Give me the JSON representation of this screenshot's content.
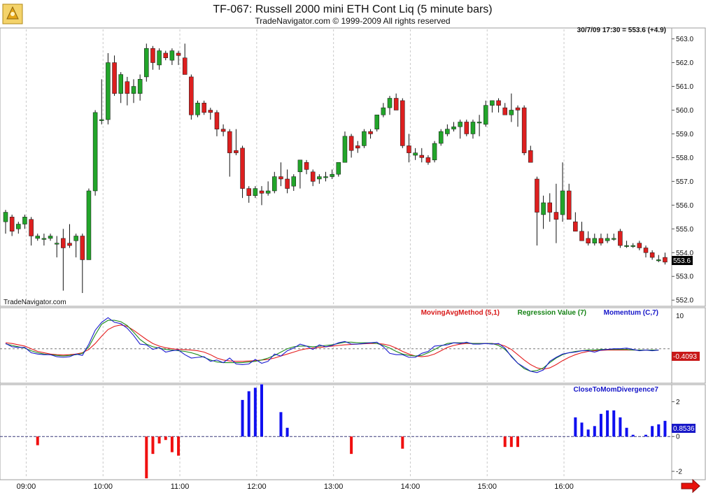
{
  "header": {
    "title": "TF-067:  Russell 2000 mini ETH Cont Liq  (5 minute bars)",
    "subtitle": "TradeNavigator.com © 1999-2009 All rights reserved"
  },
  "watermark": "TradeNavigator.com",
  "colors": {
    "up": "#22a52a",
    "down": "#dd1f1f",
    "ma": "#e41c1c",
    "reg": "#1c8a1c",
    "mom": "#1c1cd0",
    "bar_pos": "#1010f0",
    "bar_neg": "#f01010",
    "grid": "#c9c9c9",
    "accent_arrow": "#e8120c"
  },
  "chart_data": [
    {
      "type": "candlestick",
      "panel": "price",
      "readout": "30/7/09 17:30 = 553.6 (+4.9)",
      "last_value_label": "553.6",
      "ylim": [
        551.8,
        563.4
      ],
      "y_ticks": [
        "552.0",
        "553.0",
        "554.0",
        "555.0",
        "556.0",
        "557.0",
        "558.0",
        "559.0",
        "560.0",
        "561.0",
        "562.0",
        "563.0"
      ],
      "x_ticks": [
        "09:00",
        "10:00",
        "11:00",
        "12:00",
        "13:00",
        "14:00",
        "15:00",
        "16:00"
      ],
      "bars": [
        [
          555.3,
          555.8,
          554.8,
          555.7
        ],
        [
          555.5,
          555.6,
          554.7,
          554.9
        ],
        [
          555.0,
          555.3,
          554.8,
          555.2
        ],
        [
          555.2,
          555.6,
          555.0,
          555.5
        ],
        [
          555.4,
          555.5,
          554.3,
          554.7
        ],
        [
          554.6,
          554.8,
          554.5,
          554.7
        ],
        [
          554.6,
          554.8,
          554.3,
          554.6
        ],
        [
          554.6,
          554.8,
          554.5,
          554.7
        ],
        [
          554.4,
          554.7,
          553.8,
          554.4
        ],
        [
          554.6,
          555.0,
          552.4,
          554.2
        ],
        [
          554.4,
          555.2,
          554.2,
          554.3
        ],
        [
          554.5,
          554.8,
          553.8,
          554.7
        ],
        [
          554.7,
          554.8,
          552.3,
          553.7
        ],
        [
          553.7,
          556.7,
          553.7,
          556.6
        ],
        [
          556.6,
          560.0,
          556.4,
          559.9
        ],
        [
          559.6,
          561.3,
          559.4,
          559.6
        ],
        [
          559.6,
          562.4,
          559.4,
          562.0
        ],
        [
          562.0,
          562.3,
          560.6,
          560.7
        ],
        [
          560.7,
          561.6,
          560.3,
          561.5
        ],
        [
          561.2,
          561.4,
          560.2,
          560.7
        ],
        [
          560.7,
          561.3,
          560.3,
          561.0
        ],
        [
          560.7,
          561.5,
          560.4,
          561.3
        ],
        [
          561.4,
          562.8,
          561.2,
          562.6
        ],
        [
          562.6,
          562.7,
          561.7,
          562.0
        ],
        [
          561.9,
          562.6,
          561.7,
          562.5
        ],
        [
          562.4,
          562.5,
          562.1,
          562.2
        ],
        [
          562.1,
          562.6,
          561.9,
          562.5
        ],
        [
          562.4,
          562.5,
          561.9,
          562.3
        ],
        [
          562.2,
          562.8,
          561.8,
          561.5
        ],
        [
          561.4,
          561.5,
          559.6,
          559.8
        ],
        [
          559.8,
          560.4,
          559.7,
          560.3
        ],
        [
          560.3,
          560.4,
          559.8,
          559.9
        ],
        [
          560.0,
          560.1,
          559.6,
          559.9
        ],
        [
          559.9,
          560.0,
          558.9,
          559.2
        ],
        [
          559.2,
          559.4,
          558.9,
          559.1
        ],
        [
          559.1,
          559.2,
          557.2,
          558.2
        ],
        [
          558.3,
          559.2,
          558.1,
          558.2
        ],
        [
          558.4,
          558.5,
          556.3,
          556.7
        ],
        [
          556.7,
          556.8,
          556.1,
          556.4
        ],
        [
          556.4,
          556.8,
          556.3,
          556.7
        ],
        [
          556.6,
          556.8,
          556.0,
          556.5
        ],
        [
          556.5,
          557.0,
          556.4,
          556.6
        ],
        [
          556.6,
          557.4,
          556.5,
          557.2
        ],
        [
          557.2,
          557.8,
          556.8,
          557.1
        ],
        [
          557.1,
          557.5,
          556.5,
          556.7
        ],
        [
          556.8,
          557.3,
          556.6,
          557.2
        ],
        [
          557.4,
          557.9,
          556.7,
          557.9
        ],
        [
          557.8,
          557.9,
          557.3,
          557.5
        ],
        [
          557.4,
          557.5,
          556.8,
          557.0
        ],
        [
          557.1,
          557.3,
          556.9,
          557.2
        ],
        [
          557.2,
          557.4,
          557.0,
          557.2
        ],
        [
          557.2,
          557.5,
          557.1,
          557.3
        ],
        [
          557.3,
          557.8,
          557.2,
          557.8
        ],
        [
          557.8,
          559.1,
          557.8,
          558.9
        ],
        [
          558.9,
          559.0,
          558.0,
          558.3
        ],
        [
          558.5,
          558.7,
          558.2,
          558.4
        ],
        [
          558.5,
          559.2,
          558.4,
          559.1
        ],
        [
          559.1,
          559.2,
          558.8,
          559.0
        ],
        [
          559.2,
          559.7,
          559.1,
          559.8
        ],
        [
          559.8,
          560.3,
          559.7,
          560.1
        ],
        [
          560.1,
          560.6,
          559.8,
          560.5
        ],
        [
          560.5,
          560.7,
          560.0,
          560.0
        ],
        [
          560.4,
          560.5,
          558.4,
          558.5
        ],
        [
          558.5,
          559.0,
          557.8,
          558.2
        ],
        [
          558.1,
          558.4,
          557.9,
          558.2
        ],
        [
          558.1,
          558.4,
          557.8,
          558.0
        ],
        [
          558.0,
          558.1,
          557.7,
          557.8
        ],
        [
          557.9,
          558.7,
          557.8,
          558.6
        ],
        [
          558.6,
          559.2,
          558.5,
          559.1
        ],
        [
          559.0,
          559.4,
          558.9,
          559.2
        ],
        [
          559.2,
          559.5,
          559.1,
          559.3
        ],
        [
          559.3,
          559.6,
          558.8,
          559.5
        ],
        [
          559.5,
          559.6,
          558.9,
          559.0
        ],
        [
          559.0,
          559.6,
          558.8,
          559.5
        ],
        [
          559.5,
          559.8,
          558.9,
          559.5
        ],
        [
          559.4,
          560.4,
          559.3,
          560.2
        ],
        [
          560.2,
          560.4,
          559.9,
          560.4
        ],
        [
          560.4,
          560.5,
          559.9,
          560.2
        ],
        [
          560.1,
          560.3,
          559.8,
          559.8
        ],
        [
          559.8,
          560.7,
          559.5,
          560.0
        ],
        [
          560.1,
          560.2,
          559.3,
          560.0
        ],
        [
          560.1,
          560.2,
          558.1,
          558.2
        ],
        [
          558.3,
          558.5,
          557.9,
          557.8
        ],
        [
          557.1,
          557.2,
          554.3,
          555.7
        ],
        [
          555.6,
          556.4,
          555.0,
          556.1
        ],
        [
          556.1,
          556.5,
          555.3,
          555.7
        ],
        [
          555.7,
          556.9,
          554.4,
          555.4
        ],
        [
          555.6,
          557.8,
          555.3,
          556.6
        ],
        [
          556.6,
          556.9,
          555.4,
          555.4
        ],
        [
          555.3,
          555.7,
          554.9,
          554.9
        ],
        [
          554.9,
          555.3,
          554.5,
          554.5
        ],
        [
          554.6,
          554.9,
          554.3,
          554.4
        ],
        [
          554.4,
          554.8,
          554.3,
          554.6
        ],
        [
          554.6,
          554.8,
          554.3,
          554.4
        ],
        [
          554.5,
          554.8,
          554.4,
          554.6
        ],
        [
          554.6,
          554.8,
          554.5,
          554.6
        ],
        [
          554.9,
          555.0,
          554.2,
          554.3
        ],
        [
          554.3,
          554.5,
          554.2,
          554.3
        ],
        [
          554.3,
          554.4,
          554.2,
          554.3
        ],
        [
          554.4,
          554.5,
          554.1,
          554.2
        ],
        [
          554.2,
          554.3,
          553.8,
          554.0
        ],
        [
          554.0,
          554.1,
          553.7,
          553.8
        ],
        [
          553.7,
          553.9,
          553.6,
          553.7
        ],
        [
          553.8,
          554.0,
          553.5,
          553.6
        ]
      ]
    },
    {
      "type": "line",
      "panel": "oscillator",
      "ylim": [
        -10,
        12
      ],
      "y_ticks": [
        "10"
      ],
      "last_value_label": "-0.4093",
      "legend": [
        "MovingAvgMethod (5,1)",
        "Regression Value (7)",
        "Momentum (C,7)"
      ],
      "series": [
        {
          "name": "MovingAvgMethod (5,1)",
          "values": [
            1.8,
            1.6,
            1.2,
            0.8,
            0.0,
            -0.8,
            -1.2,
            -1.6,
            -1.8,
            -1.9,
            -1.8,
            -1.6,
            -1.2,
            -0.2,
            1.6,
            3.8,
            5.8,
            6.8,
            7.2,
            6.8,
            5.6,
            4.2,
            2.8,
            1.6,
            0.8,
            0.3,
            0.0,
            -0.2,
            -0.3,
            -0.4,
            -0.6,
            -1.0,
            -1.8,
            -2.8,
            -3.4,
            -3.7,
            -3.8,
            -3.8,
            -3.7,
            -3.6,
            -3.4,
            -3.2,
            -2.8,
            -2.2,
            -1.6,
            -1.0,
            -0.4,
            0.0,
            0.2,
            0.4,
            0.6,
            0.8,
            1.0,
            1.2,
            1.3,
            1.4,
            1.5,
            1.6,
            1.6,
            1.4,
            1.0,
            0.2,
            -0.8,
            -1.6,
            -2.2,
            -2.4,
            -2.2,
            -1.6,
            -0.6,
            0.4,
            1.0,
            1.4,
            1.6,
            1.6,
            1.6,
            1.6,
            1.6,
            1.4,
            0.8,
            -0.2,
            -1.8,
            -3.4,
            -4.8,
            -5.8,
            -6.2,
            -5.8,
            -4.8,
            -3.6,
            -2.6,
            -1.8,
            -1.2,
            -0.8,
            -0.6,
            -0.5,
            -0.4,
            -0.4,
            -0.4,
            -0.4,
            -0.4,
            -0.4,
            -0.4,
            -0.4,
            -0.4
          ]
        },
        {
          "name": "Regression Value (7)",
          "values": [
            1.5,
            1.0,
            0.6,
            0.2,
            -0.6,
            -1.2,
            -1.6,
            -1.8,
            -2.0,
            -2.2,
            -2.0,
            -1.8,
            -1.4,
            0.6,
            4.2,
            7.4,
            8.6,
            8.6,
            8.2,
            7.0,
            5.0,
            2.8,
            1.4,
            0.6,
            0.2,
            -0.2,
            -0.4,
            -0.6,
            -0.8,
            -1.2,
            -1.8,
            -2.6,
            -3.4,
            -4.0,
            -4.2,
            -4.2,
            -4.2,
            -4.2,
            -4.0,
            -3.8,
            -3.4,
            -2.8,
            -2.0,
            -1.0,
            0.0,
            0.6,
            0.8,
            0.8,
            0.6,
            0.8,
            1.0,
            1.2,
            1.6,
            2.0,
            2.0,
            1.8,
            1.8,
            1.8,
            1.6,
            1.0,
            0.2,
            -0.8,
            -1.6,
            -2.0,
            -2.2,
            -2.0,
            -1.2,
            -0.2,
            0.8,
            1.6,
            1.8,
            1.8,
            1.8,
            1.6,
            1.6,
            1.6,
            1.6,
            1.0,
            -0.2,
            -2.2,
            -4.4,
            -6.0,
            -6.8,
            -6.6,
            -5.8,
            -4.2,
            -2.8,
            -1.8,
            -1.2,
            -0.8,
            -0.6,
            -0.4,
            -0.4,
            -0.2,
            -0.2,
            -0.2,
            -0.2,
            -0.2,
            -0.4,
            -0.4,
            -0.4,
            -0.4,
            -0.4
          ]
        },
        {
          "name": "Momentum (C,7)",
          "values": [
            1.6,
            0.6,
            0.4,
            0.4,
            -1.2,
            -1.6,
            -1.8,
            -1.8,
            -2.4,
            -2.6,
            -2.4,
            -1.6,
            -2.0,
            1.4,
            5.6,
            8.0,
            9.4,
            8.0,
            7.6,
            6.2,
            4.0,
            1.4,
            1.2,
            -0.2,
            0.4,
            -1.0,
            -0.6,
            -0.4,
            -1.8,
            -2.8,
            -2.6,
            -2.4,
            -3.8,
            -3.4,
            -4.2,
            -2.8,
            -4.6,
            -4.8,
            -4.6,
            -3.2,
            -4.4,
            -3.8,
            -1.6,
            -2.2,
            -0.6,
            0.2,
            1.4,
            0.8,
            -0.2,
            1.2,
            0.6,
            1.0,
            1.8,
            2.2,
            1.4,
            1.4,
            1.6,
            1.8,
            2.0,
            0.6,
            -1.4,
            -1.8,
            -1.8,
            -2.6,
            -2.6,
            -1.4,
            -0.8,
            0.8,
            1.0,
            1.2,
            1.8,
            1.6,
            2.0,
            1.4,
            1.4,
            1.6,
            1.4,
            1.6,
            0.2,
            -2.4,
            -4.4,
            -5.6,
            -6.8,
            -7.2,
            -6.4,
            -3.8,
            -2.6,
            -1.6,
            -1.2,
            -1.0,
            -0.6,
            -0.6,
            -1.0,
            -0.4,
            -0.2,
            0.0,
            0.0,
            0.2,
            -0.2,
            -0.6,
            -0.4,
            -0.6,
            -0.4
          ]
        }
      ]
    },
    {
      "type": "bar",
      "panel": "histogram",
      "title": "CloseToMomDivergence7",
      "ylim": [
        -2.4,
        2.9
      ],
      "y_ticks": [
        "2",
        "0",
        "-2"
      ],
      "last_value_label": "0.8536",
      "values": [
        0,
        0,
        0,
        0,
        0,
        -0.5,
        0,
        0,
        0,
        0,
        0,
        0,
        0,
        0,
        0,
        0,
        0,
        0,
        0,
        0,
        0,
        0,
        -2.4,
        -1.0,
        -0.4,
        -0.2,
        -0.9,
        -1.1,
        0,
        0,
        0,
        0,
        0,
        0,
        0,
        0,
        0,
        2.1,
        2.6,
        2.8,
        3.0,
        0,
        0,
        1.4,
        0.5,
        0,
        0,
        0,
        0,
        0,
        0,
        0,
        0,
        0,
        -1.0,
        0,
        0,
        0,
        0,
        0,
        0,
        0,
        -0.7,
        0,
        0,
        0,
        0,
        0,
        0,
        0,
        0,
        0,
        0,
        0,
        0,
        0,
        0,
        0,
        -0.6,
        -0.6,
        -0.6,
        0,
        0,
        0,
        0,
        0,
        0,
        0,
        0,
        1.1,
        0.8,
        0.4,
        0.6,
        1.3,
        1.5,
        1.5,
        1.1,
        0.5,
        0.1,
        0,
        0.1,
        0.6,
        0.7,
        0.9
      ]
    }
  ]
}
